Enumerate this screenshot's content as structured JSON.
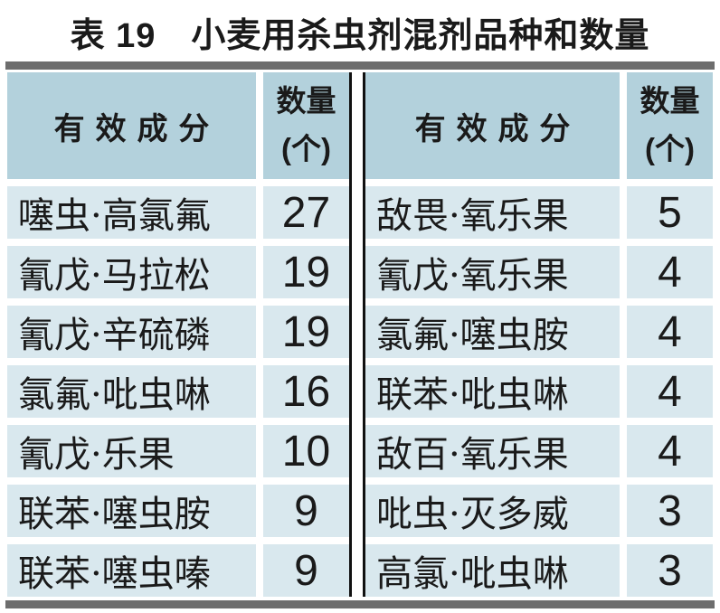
{
  "title": "表 19　小麦用杀虫剂混剂品种和数量",
  "table": {
    "header": {
      "ingredient": "有效成分",
      "qty_line1": "数量",
      "qty_line2": "(个)"
    },
    "left_rows": [
      {
        "ingredient": "噻虫·高氯氟",
        "qty": "27"
      },
      {
        "ingredient": "氰戊·马拉松",
        "qty": "19"
      },
      {
        "ingredient": "氰戊·辛硫磷",
        "qty": "19"
      },
      {
        "ingredient": "氯氟·吡虫啉",
        "qty": "16"
      },
      {
        "ingredient": "氰戊·乐果",
        "qty": "10"
      },
      {
        "ingredient": "联苯·噻虫胺",
        "qty": "9"
      },
      {
        "ingredient": "联苯·噻虫嗪",
        "qty": "9"
      }
    ],
    "right_rows": [
      {
        "ingredient": "敌畏·氧乐果",
        "qty": "5"
      },
      {
        "ingredient": "氰戊·氧乐果",
        "qty": "4"
      },
      {
        "ingredient": "氯氟·噻虫胺",
        "qty": "4"
      },
      {
        "ingredient": "联苯·吡虫啉",
        "qty": "4"
      },
      {
        "ingredient": "敌百·氧乐果",
        "qty": "4"
      },
      {
        "ingredient": "吡虫·灭多威",
        "qty": "3"
      },
      {
        "ingredient": "高氯·吡虫啉",
        "qty": "3"
      }
    ]
  },
  "colors": {
    "header-bg": "#b3d1dc",
    "row-bg": "#d9e8ee",
    "bar": "#6d6d6d",
    "rule": "#111111",
    "text": "#1a1a1a"
  }
}
